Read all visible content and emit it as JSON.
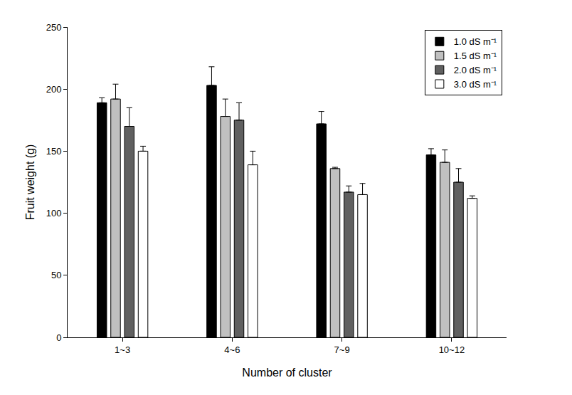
{
  "chart_data": {
    "type": "bar",
    "x_label": "Number of cluster",
    "y_label": "Fruit weight (g)",
    "categories": [
      "1~3",
      "4~6",
      "7~9",
      "10~12"
    ],
    "series": [
      {
        "name": "1.0 dS m⁻¹",
        "color": "#000000",
        "values": [
          189,
          203,
          172,
          147
        ],
        "error": [
          4,
          15,
          10,
          5
        ]
      },
      {
        "name": "1.5 dS m⁻¹",
        "color": "#c0c0c0",
        "values": [
          192,
          178,
          136,
          141
        ],
        "error": [
          12,
          14,
          1,
          10
        ]
      },
      {
        "name": "2.0 dS m⁻¹",
        "color": "#606060",
        "values": [
          170,
          175,
          117,
          125
        ],
        "error": [
          15,
          14,
          5,
          11
        ]
      },
      {
        "name": "3.0 dS m⁻¹",
        "color": "#ffffff",
        "values": [
          150,
          139,
          115,
          112
        ],
        "error": [
          4,
          11,
          9,
          2
        ]
      }
    ],
    "ylim": [
      0,
      250
    ],
    "yticks": [
      0,
      50,
      100,
      150,
      200,
      250
    ],
    "grid": false,
    "legend": "upper right"
  }
}
